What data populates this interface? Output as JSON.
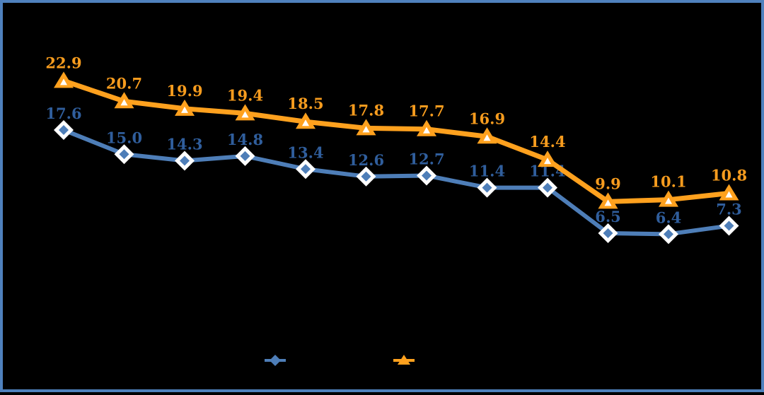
{
  "window": {
    "background_color": "#000000",
    "frame_border_color": "#4F81BD"
  },
  "chart_data": {
    "type": "line",
    "title": "",
    "xlabel": "",
    "ylabel": "",
    "axes_visible": false,
    "gridlines_visible": false,
    "x_tick_labels_visible": false,
    "point_count": 12,
    "series": [
      {
        "id": "blue-diamond",
        "marker": "diamond",
        "line_color": "#4E7EB8",
        "marker_fill": "#4E7EB8",
        "marker_outline": "#FFFFFF",
        "label_color": "#305E9C",
        "values": [
          17.6,
          15.0,
          14.3,
          14.8,
          13.4,
          12.6,
          12.7,
          11.4,
          11.4,
          6.5,
          6.4,
          7.3
        ],
        "labels": [
          "17.6",
          "15.0",
          "14.3",
          "14.8",
          "13.4",
          "12.6",
          "12.7",
          "11.4",
          "11.4",
          "6.5",
          "6.4",
          "7.3"
        ]
      },
      {
        "id": "orange-triangle",
        "marker": "triangle",
        "line_color": "#FFA11E",
        "marker_fill": "#FFA11E",
        "marker_outline": "#FFFFFF",
        "label_color": "#F79C1E",
        "values": [
          22.9,
          20.7,
          19.9,
          19.4,
          18.5,
          17.8,
          17.7,
          16.9,
          14.4,
          9.9,
          10.1,
          10.8
        ],
        "labels": [
          "22.9",
          "20.7",
          "19.9",
          "19.4",
          "18.5",
          "17.8",
          "17.7",
          "16.9",
          "14.4",
          "9.9",
          "10.1",
          "10.8"
        ]
      }
    ],
    "legend": {
      "position": "bottom-center",
      "labels_visible": false,
      "entries": [
        {
          "series": "blue-diamond",
          "label": ""
        },
        {
          "series": "orange-triangle",
          "label": ""
        }
      ]
    }
  }
}
